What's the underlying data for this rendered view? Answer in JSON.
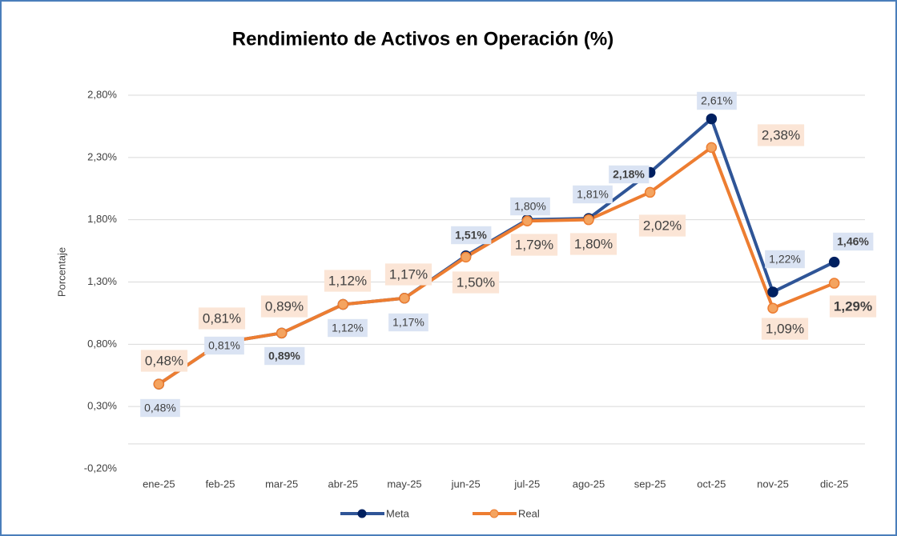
{
  "chart_data": {
    "type": "line",
    "title": "Rendimiento de Activos en Operación (%)",
    "y_label": "Porcentaje",
    "categories": [
      "ene-25",
      "feb-25",
      "mar-25",
      "abr-25",
      "may-25",
      "jun-25",
      "jul-25",
      "ago-25",
      "sep-25",
      "oct-25",
      "nov-25",
      "dic-25"
    ],
    "series": [
      {
        "name": "Meta",
        "color": "#2f5597",
        "marker_color": "#002060",
        "values": [
          0.48,
          0.81,
          0.89,
          1.12,
          1.17,
          1.51,
          1.8,
          1.81,
          2.18,
          2.61,
          1.22,
          1.46
        ],
        "value_labels": [
          "0,48%",
          "0,81%",
          "0,89%",
          "1,12%",
          "1,17%",
          "1,51%",
          "1,80%",
          "1,81%",
          "2,18%",
          "2,61%",
          "1,22%",
          "1,46%"
        ]
      },
      {
        "name": "Real",
        "color": "#ed7d31",
        "marker_color": "#f4a460",
        "values": [
          0.48,
          0.81,
          0.89,
          1.12,
          1.17,
          1.5,
          1.79,
          1.8,
          2.02,
          2.38,
          1.09,
          1.29
        ],
        "value_labels": [
          "0,48%",
          "0,81%",
          "0,89%",
          "1,12%",
          "1,17%",
          "1,50%",
          "1,79%",
          "1,80%",
          "2,02%",
          "2,38%",
          "1,09%",
          "1,29%"
        ]
      }
    ],
    "ylim": [
      -0.2,
      2.8
    ],
    "yticks": [
      {
        "value": -0.2,
        "label": "-0,20%"
      },
      {
        "value": 0.3,
        "label": "0,30%"
      },
      {
        "value": 0.8,
        "label": "0,80%"
      },
      {
        "value": 1.3,
        "label": "1,30%"
      },
      {
        "value": 1.8,
        "label": "1,80%"
      },
      {
        "value": 2.3,
        "label": "2,30%"
      },
      {
        "value": 2.8,
        "label": "2,80%"
      }
    ],
    "grid": true,
    "legend": "bottom"
  }
}
